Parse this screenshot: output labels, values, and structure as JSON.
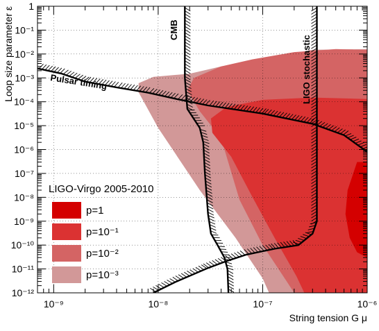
{
  "chart_data": {
    "type": "area",
    "title": "",
    "xlabel": "String tension G μ",
    "ylabel": "Loop size parameter    ε",
    "x_scale": "log",
    "y_scale": "log",
    "xlim": [
      7e-10,
      1e-06
    ],
    "ylim": [
      1e-12,
      1
    ],
    "grid": true,
    "x_tick_labels": [
      "10⁻⁹",
      "10⁻⁸",
      "10⁻⁷",
      "10⁻⁶"
    ],
    "y_tick_labels": [
      "1",
      "10⁻¹",
      "10⁻²",
      "10⁻³",
      "10⁻⁴",
      "10⁻⁵",
      "10⁻⁶",
      "10⁻⁷",
      "10⁻⁸",
      "10⁻⁹",
      "10⁻¹⁰",
      "10⁻¹¹",
      "10⁻¹²"
    ],
    "legend": {
      "title": "LIGO-Virgo 2005-2010",
      "placement": "bottom-left",
      "entries": [
        {
          "label": "p=1",
          "color": "#d40000"
        },
        {
          "label": "p=10⁻¹",
          "color": "#db3232"
        },
        {
          "label": "p=10⁻²",
          "color": "#d46464"
        },
        {
          "label": "p=10⁻³",
          "color": "#d29898"
        }
      ]
    },
    "series": [
      {
        "name": "p=10⁻³",
        "color": "#d29898",
        "boundary": [
          [
            1e-06,
            0.016
          ],
          [
            3e-07,
            0.015
          ],
          [
            1e-07,
            0.006
          ],
          [
            4e-08,
            0.003
          ],
          [
            2e-08,
            0.0015
          ],
          [
            9e-09,
            0.0011
          ],
          [
            6.5e-09,
            0.0006
          ],
          [
            6.5e-09,
            0.00025
          ],
          [
            1e-08,
            8e-06
          ],
          [
            2.5e-08,
            2e-08
          ],
          [
            5.5e-08,
            2e-10
          ],
          [
            1e-07,
            4e-12
          ],
          [
            1.15e-07,
            1e-12
          ],
          [
            1e-06,
            1e-12
          ]
        ]
      },
      {
        "name": "p=10⁻²",
        "color": "#d46464",
        "boundary": [
          [
            1e-06,
            0.015
          ],
          [
            5e-07,
            0.016
          ],
          [
            2e-07,
            0.012
          ],
          [
            8e-08,
            0.006
          ],
          [
            4e-08,
            0.003
          ],
          [
            2.2e-08,
            0.001
          ],
          [
            1.9e-08,
            0.0003
          ],
          [
            2.5e-08,
            4e-05
          ],
          [
            4e-08,
            3e-06
          ],
          [
            6e-08,
            8e-09
          ],
          [
            1e-07,
            1e-10
          ],
          [
            1.7e-07,
            3e-12
          ],
          [
            2e-07,
            1e-12
          ],
          [
            1e-06,
            1e-12
          ]
        ]
      },
      {
        "name": "p=10⁻¹",
        "color": "#db3232",
        "boundary": [
          [
            1e-06,
            0.00013
          ],
          [
            3e-07,
            0.00015
          ],
          [
            1e-07,
            0.00012
          ],
          [
            4.5e-08,
            6e-05
          ],
          [
            3.2e-08,
            2e-05
          ],
          [
            3.3e-08,
            5e-06
          ],
          [
            5e-08,
            5e-07
          ],
          [
            8e-08,
            1e-08
          ],
          [
            1.3e-07,
            2e-10
          ],
          [
            2.1e-07,
            5e-12
          ],
          [
            2.5e-07,
            1e-12
          ],
          [
            1e-06,
            1e-12
          ]
        ]
      },
      {
        "name": "p=1",
        "color": "#d40000",
        "boundary": [
          [
            1e-06,
            3e-07
          ],
          [
            8e-07,
            3e-07
          ],
          [
            6.5e-07,
            2e-08
          ],
          [
            6.2e-07,
            2e-09
          ],
          [
            6.8e-07,
            2e-10
          ],
          [
            8e-07,
            5e-11
          ],
          [
            1e-06,
            3e-11
          ]
        ]
      }
    ],
    "constraints": [
      {
        "label": "CMB",
        "points": [
          [
            1.8e-08,
            1
          ],
          [
            1.8e-08,
            0.001
          ],
          [
            1.9e-08,
            5e-05
          ],
          [
            2.5e-08,
            8e-06
          ],
          [
            2.7e-08,
            2e-06
          ],
          [
            2.8e-08,
            1e-07
          ],
          [
            3e-08,
            2e-09
          ],
          [
            3.2e-08,
            3e-10
          ],
          [
            3.7e-08,
            1e-10
          ],
          [
            4.3e-08,
            3e-11
          ],
          [
            4.6e-08,
            1e-11
          ],
          [
            4.7e-08,
            1e-12
          ]
        ]
      },
      {
        "label": "LIGO stochastic",
        "points": [
          [
            3.3e-07,
            1
          ],
          [
            3.3e-07,
            1e-05
          ],
          [
            3.3e-07,
            1e-09
          ],
          [
            3e-07,
            3e-10
          ],
          [
            2.2e-07,
            1e-10
          ],
          [
            1.3e-07,
            7e-11
          ],
          [
            7e-08,
            4e-11
          ],
          [
            4.6e-08,
            2.2e-11
          ],
          [
            3e-08,
            1.1e-11
          ],
          [
            1.5e-08,
            3e-12
          ],
          [
            9e-09,
            1e-12
          ]
        ]
      },
      {
        "label": "Pulsar timing",
        "points": [
          [
            7e-10,
            0.0025
          ],
          [
            1.2e-09,
            0.0015
          ],
          [
            2e-09,
            0.0007
          ],
          [
            4e-09,
            0.0004
          ],
          [
            8e-09,
            0.00024
          ],
          [
            1.5e-08,
            0.00013
          ],
          [
            3e-08,
            7e-05
          ],
          [
            1e-07,
            3.2e-05
          ],
          [
            3e-07,
            1.2e-05
          ],
          [
            6e-07,
            4e-06
          ],
          [
            1e-06,
            8e-07
          ]
        ]
      }
    ]
  }
}
